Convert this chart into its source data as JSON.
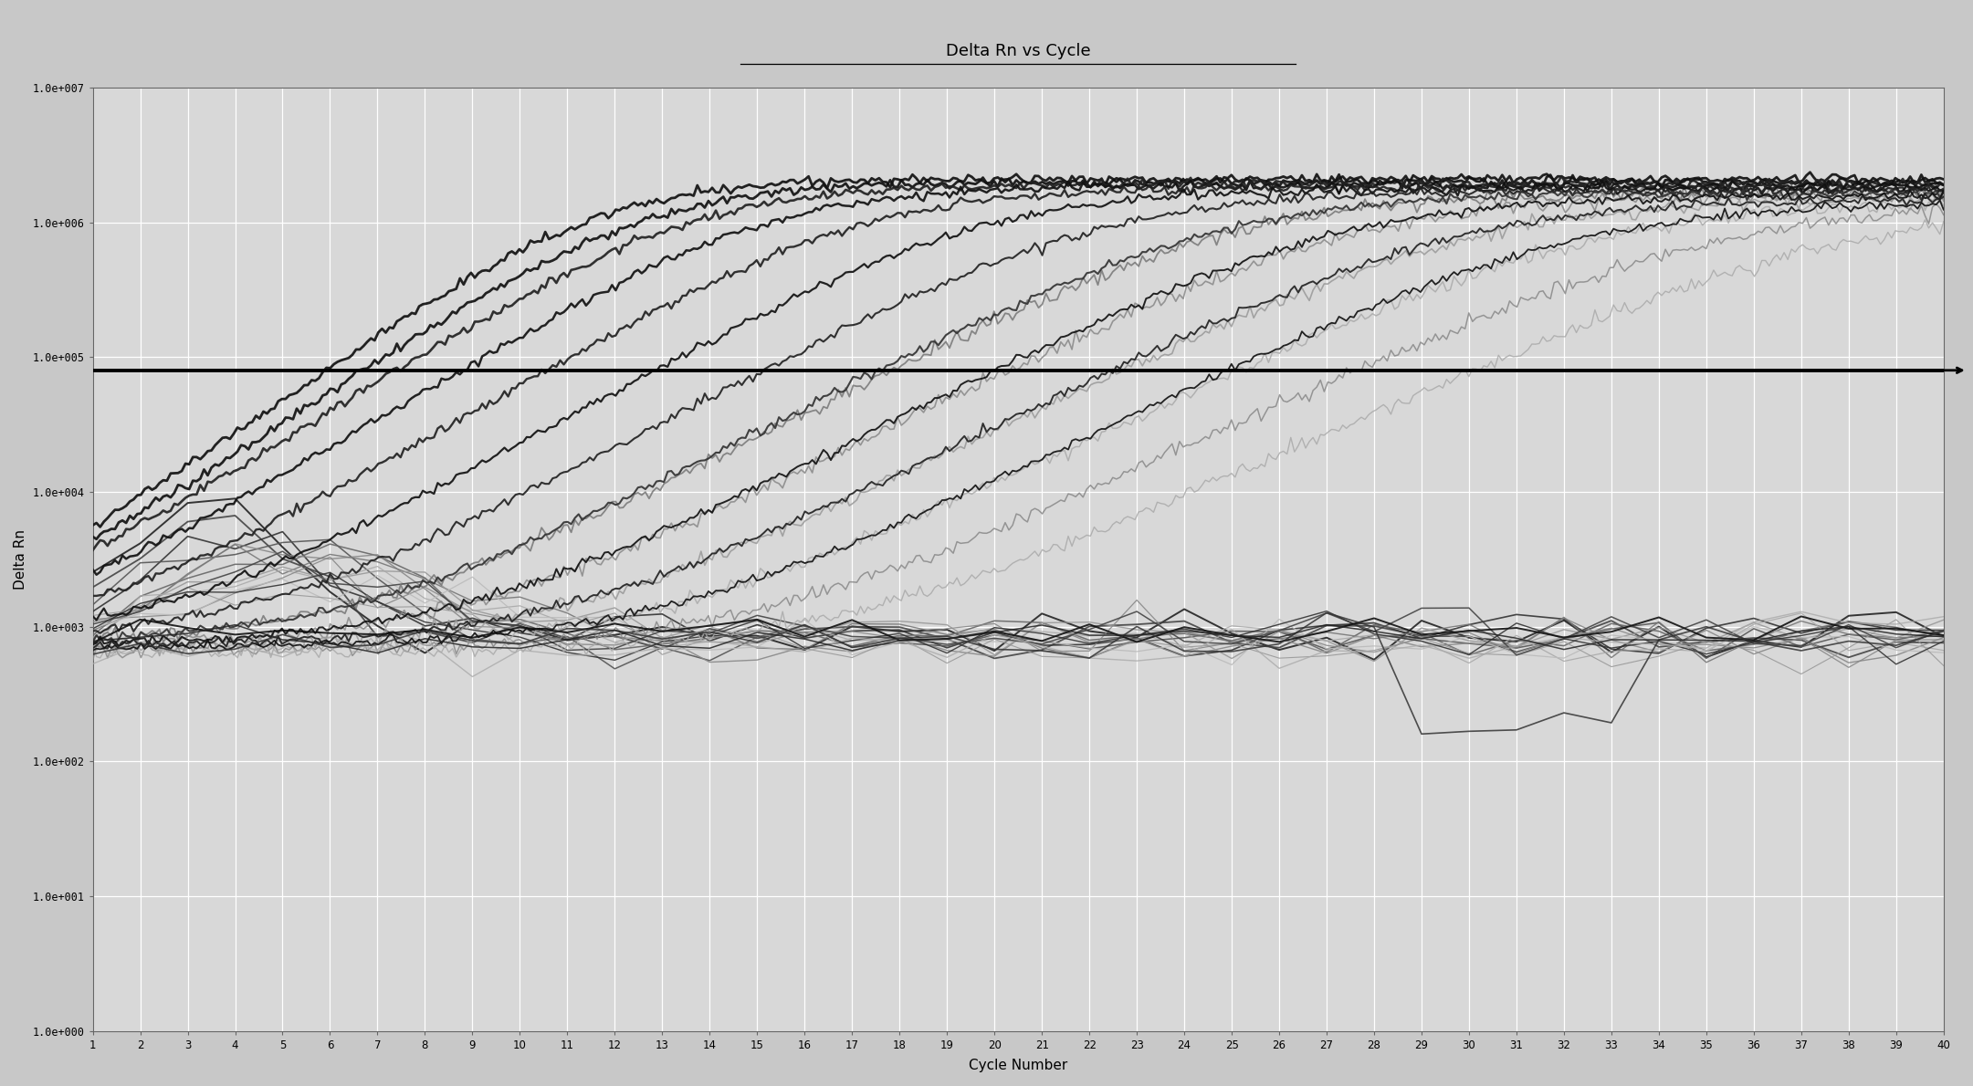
{
  "title": "Delta Rn vs Cycle",
  "xlabel": "Cycle Number",
  "ylabel": "Delta Rn",
  "xlim": [
    1,
    40
  ],
  "ylim_low": 1.0,
  "ylim_high": 10000000.0,
  "yticks": [
    1.0,
    10.0,
    100.0,
    1000.0,
    10000.0,
    100000.0,
    1000000.0,
    10000000.0
  ],
  "ytick_labels": [
    "1.0e+000",
    "1.0e+001",
    "1.0e+002",
    "1.0e+003",
    "1.0e+004",
    "1.0e+005",
    "1.0e+006",
    "1.0e+007"
  ],
  "xticks": [
    1,
    2,
    3,
    4,
    5,
    6,
    7,
    8,
    9,
    10,
    11,
    12,
    13,
    14,
    15,
    16,
    17,
    18,
    19,
    20,
    21,
    22,
    23,
    24,
    25,
    26,
    27,
    28,
    29,
    30,
    31,
    32,
    33,
    34,
    35,
    36,
    37,
    38,
    39,
    40
  ],
  "threshold_y": 80000,
  "background_color": "#c8c8c8",
  "plot_bg_color": "#d8d8d8",
  "grid_color": "#ffffff",
  "title_fontsize": 13,
  "axis_label_fontsize": 11,
  "tick_fontsize": 8.5
}
